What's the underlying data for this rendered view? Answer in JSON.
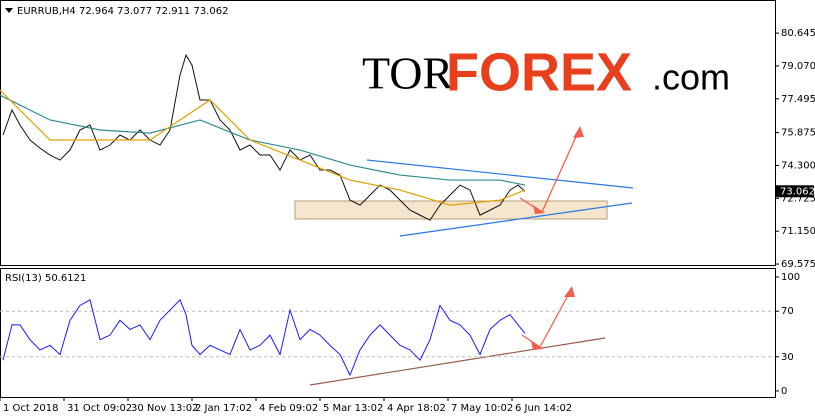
{
  "header": "EURRUB,H4  72.964 73.077 72.911 73.062",
  "watermark": {
    "tor": "TOR",
    "forex": "FOREX",
    "com": ".com"
  },
  "chart_data": [
    {
      "type": "line",
      "xlim": [
        0,
        775
      ],
      "ylim": [
        69.53,
        82.23
      ],
      "yticks": [
        80.645,
        {
          "value": 79.07,
          "label": "79.070"
        },
        77.495,
        75.875,
        {
          "value": 74.3,
          "label": "74.300"
        },
        72.725,
        {
          "value": 71.15,
          "label": "71.150"
        },
        69.575
      ],
      "current_price": 73.062,
      "x": [
        3,
        12,
        20,
        30,
        40,
        50,
        60,
        70,
        80,
        90,
        100,
        110,
        120,
        130,
        140,
        150,
        160,
        170,
        180,
        186,
        192,
        200,
        210,
        220,
        230,
        240,
        250,
        260,
        270,
        280,
        290,
        300,
        310,
        320,
        330,
        340,
        350,
        360,
        370,
        380,
        390,
        400,
        410,
        420,
        430,
        440,
        450,
        460,
        470,
        480,
        490,
        500,
        510,
        518,
        525
      ],
      "series": [
        {
          "color": "#111111",
          "values": [
            75.76,
            76.96,
            76.24,
            75.52,
            75.13,
            74.8,
            74.56,
            75.04,
            76.0,
            76.24,
            75.04,
            75.28,
            75.76,
            75.52,
            76.0,
            75.52,
            75.28,
            76.0,
            78.63,
            79.59,
            79.11,
            77.44,
            77.44,
            76.48,
            76.0,
            75.04,
            75.28,
            74.8,
            74.8,
            74.08,
            75.04,
            74.56,
            74.8,
            74.08,
            74.08,
            73.84,
            72.64,
            72.4,
            72.88,
            73.36,
            73.12,
            72.64,
            72.16,
            71.92,
            71.68,
            72.4,
            72.88,
            73.36,
            73.12,
            71.92,
            72.16,
            72.4,
            73.12,
            73.36,
            73.06
          ]
        },
        {
          "color": "#2e8b8b",
          "x": [
            0,
            50,
            100,
            150,
            200,
            250,
            300,
            350,
            400,
            450,
            500,
            525
          ],
          "values": [
            77.67,
            76.48,
            76.0,
            75.85,
            76.48,
            75.52,
            75.04,
            74.32,
            73.84,
            73.6,
            73.6,
            73.36
          ]
        },
        {
          "color": "#e0a000",
          "x": [
            0,
            50,
            100,
            150,
            180,
            210,
            250,
            300,
            350,
            400,
            450,
            500,
            525
          ],
          "values": [
            77.91,
            75.52,
            75.52,
            75.52,
            76.48,
            77.44,
            75.52,
            74.56,
            73.6,
            73.12,
            72.4,
            72.64,
            73.12
          ]
        }
      ]
    },
    {
      "type": "line",
      "title": "RSI(13) 50.6121",
      "xlim": [
        0,
        775
      ],
      "ylim": [
        -5.3,
        107.9
      ],
      "yticks": [
        100,
        70,
        30,
        0
      ],
      "xticks": [
        {
          "value": 0,
          "label": "1 Oct 2018"
        },
        {
          "value": 64,
          "label": "31 Oct 09:02"
        },
        {
          "value": 128,
          "label": "30 Nov 13:02"
        },
        {
          "value": 192,
          "label": "2 Jan 17:02"
        },
        {
          "value": 256,
          "label": "4 Feb 09:02"
        },
        {
          "value": 320,
          "label": "5 Mar 13:02"
        },
        {
          "value": 384,
          "label": "4 Apr 18:02"
        },
        {
          "value": 448,
          "label": "7 May 10:02"
        },
        {
          "value": 512,
          "label": "6 Jun 14:02"
        }
      ],
      "x": [
        3,
        12,
        20,
        30,
        40,
        50,
        60,
        70,
        80,
        90,
        100,
        110,
        120,
        130,
        140,
        150,
        160,
        170,
        180,
        186,
        192,
        200,
        210,
        220,
        230,
        240,
        250,
        260,
        270,
        280,
        290,
        300,
        310,
        320,
        330,
        340,
        350,
        360,
        370,
        380,
        390,
        400,
        410,
        420,
        430,
        440,
        450,
        460,
        470,
        480,
        490,
        500,
        510,
        518,
        525
      ],
      "series": [
        {
          "color": "#1a1aff",
          "values": [
            27,
            58,
            58,
            45,
            36,
            40,
            32,
            62,
            75,
            80,
            45,
            49,
            62,
            54,
            58,
            45,
            62,
            71,
            80,
            67,
            40,
            32,
            40,
            36,
            32,
            54,
            36,
            40,
            49,
            32,
            71,
            45,
            54,
            49,
            40,
            32,
            14,
            36,
            49,
            58,
            49,
            40,
            36,
            27,
            45,
            75,
            62,
            58,
            49,
            32,
            54,
            62,
            67,
            58,
            50.61
          ]
        }
      ]
    }
  ]
}
